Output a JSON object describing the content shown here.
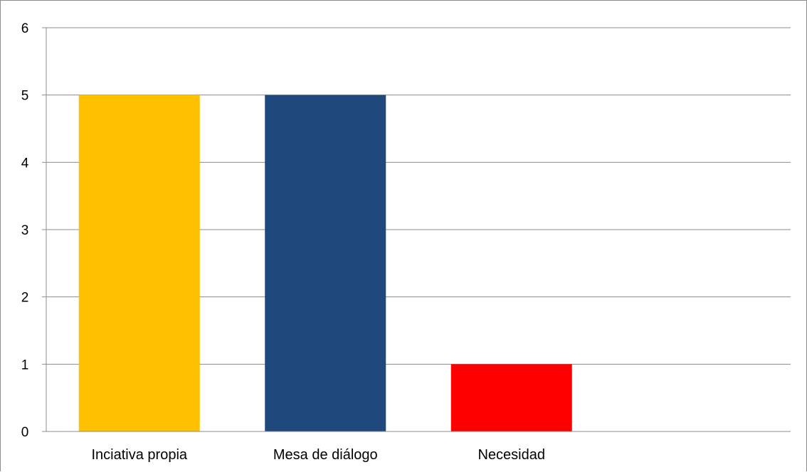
{
  "chart_data": {
    "type": "bar",
    "categories": [
      "Inciativa propia",
      "Mesa de diálogo",
      "Necesidad"
    ],
    "values": [
      5,
      5,
      1
    ],
    "colors": [
      "#FFC000",
      "#1F497D",
      "#FF0000"
    ],
    "ylim": [
      0,
      6
    ],
    "yticks": [
      "0",
      "1",
      "2",
      "3",
      "4",
      "5",
      "6"
    ],
    "grid": true,
    "legend": "none",
    "title": "",
    "xlabel": "",
    "ylabel": ""
  }
}
